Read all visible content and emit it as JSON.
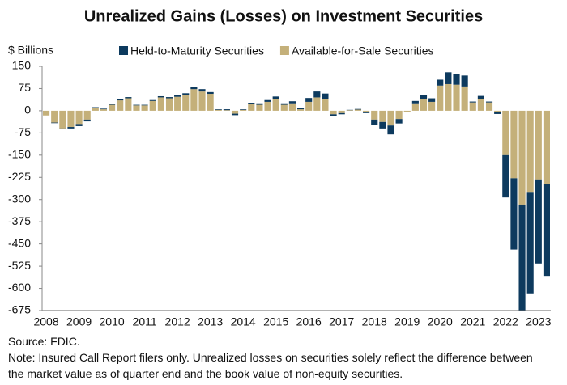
{
  "chart_data": {
    "type": "stacked-bar",
    "title": "Unrealized Gains (Losses) on Investment Securities",
    "y_label": "$ Billions",
    "source": "Source: FDIC.",
    "note": "Note: Insured Call Report filers only. Unrealized losses on securities solely reflect the difference between the market value as of quarter end and the book value of non-equity securities.",
    "categories": [
      "2008",
      null,
      null,
      null,
      "2009",
      null,
      null,
      null,
      "2010",
      null,
      null,
      null,
      "2011",
      null,
      null,
      null,
      "2012",
      null,
      null,
      null,
      "2013",
      null,
      null,
      null,
      "2014",
      null,
      null,
      null,
      "2015",
      null,
      null,
      null,
      "2016",
      null,
      null,
      null,
      "2017",
      null,
      null,
      null,
      "2018",
      null,
      null,
      null,
      "2019",
      null,
      null,
      null,
      "2020",
      null,
      null,
      null,
      "2021",
      null,
      null,
      null,
      "2022",
      null,
      null,
      null,
      "2023",
      null
    ],
    "series": [
      {
        "name": "Held-to-Maturity Securities",
        "color": "#0d3a5e",
        "values": [
          0,
          -2,
          -3,
          -5,
          -7,
          -6,
          2,
          2,
          2,
          3,
          4,
          2,
          2,
          3,
          4,
          4,
          5,
          5,
          8,
          8,
          6,
          2,
          3,
          -5,
          2,
          5,
          5,
          6,
          10,
          5,
          7,
          3,
          13,
          20,
          18,
          -6,
          -4,
          1,
          2,
          -3,
          -18,
          -22,
          -30,
          -15,
          -2,
          8,
          14,
          12,
          20,
          40,
          37,
          37,
          3,
          10,
          3,
          -6,
          -143,
          -241,
          -358,
          -340,
          -284,
          -310
        ]
      },
      {
        "name": "Available-for-Sale Securities",
        "color": "#c4b07a",
        "values": [
          -16,
          -40,
          -60,
          -55,
          -45,
          -30,
          10,
          5,
          20,
          35,
          42,
          18,
          18,
          33,
          45,
          42,
          47,
          54,
          73,
          65,
          57,
          3,
          2,
          -10,
          3,
          22,
          20,
          30,
          38,
          20,
          25,
          5,
          30,
          45,
          40,
          -12,
          -8,
          2,
          4,
          -5,
          -30,
          -38,
          -50,
          -28,
          -3,
          25,
          38,
          30,
          85,
          90,
          88,
          82,
          28,
          40,
          28,
          -5,
          -150,
          -228,
          -317,
          -277,
          -232,
          -248
        ]
      }
    ],
    "ylim": [
      -675,
      150
    ],
    "yticks": [
      150,
      75,
      0,
      -75,
      -150,
      -225,
      -300,
      -375,
      -450,
      -525,
      -600,
      -675
    ]
  }
}
